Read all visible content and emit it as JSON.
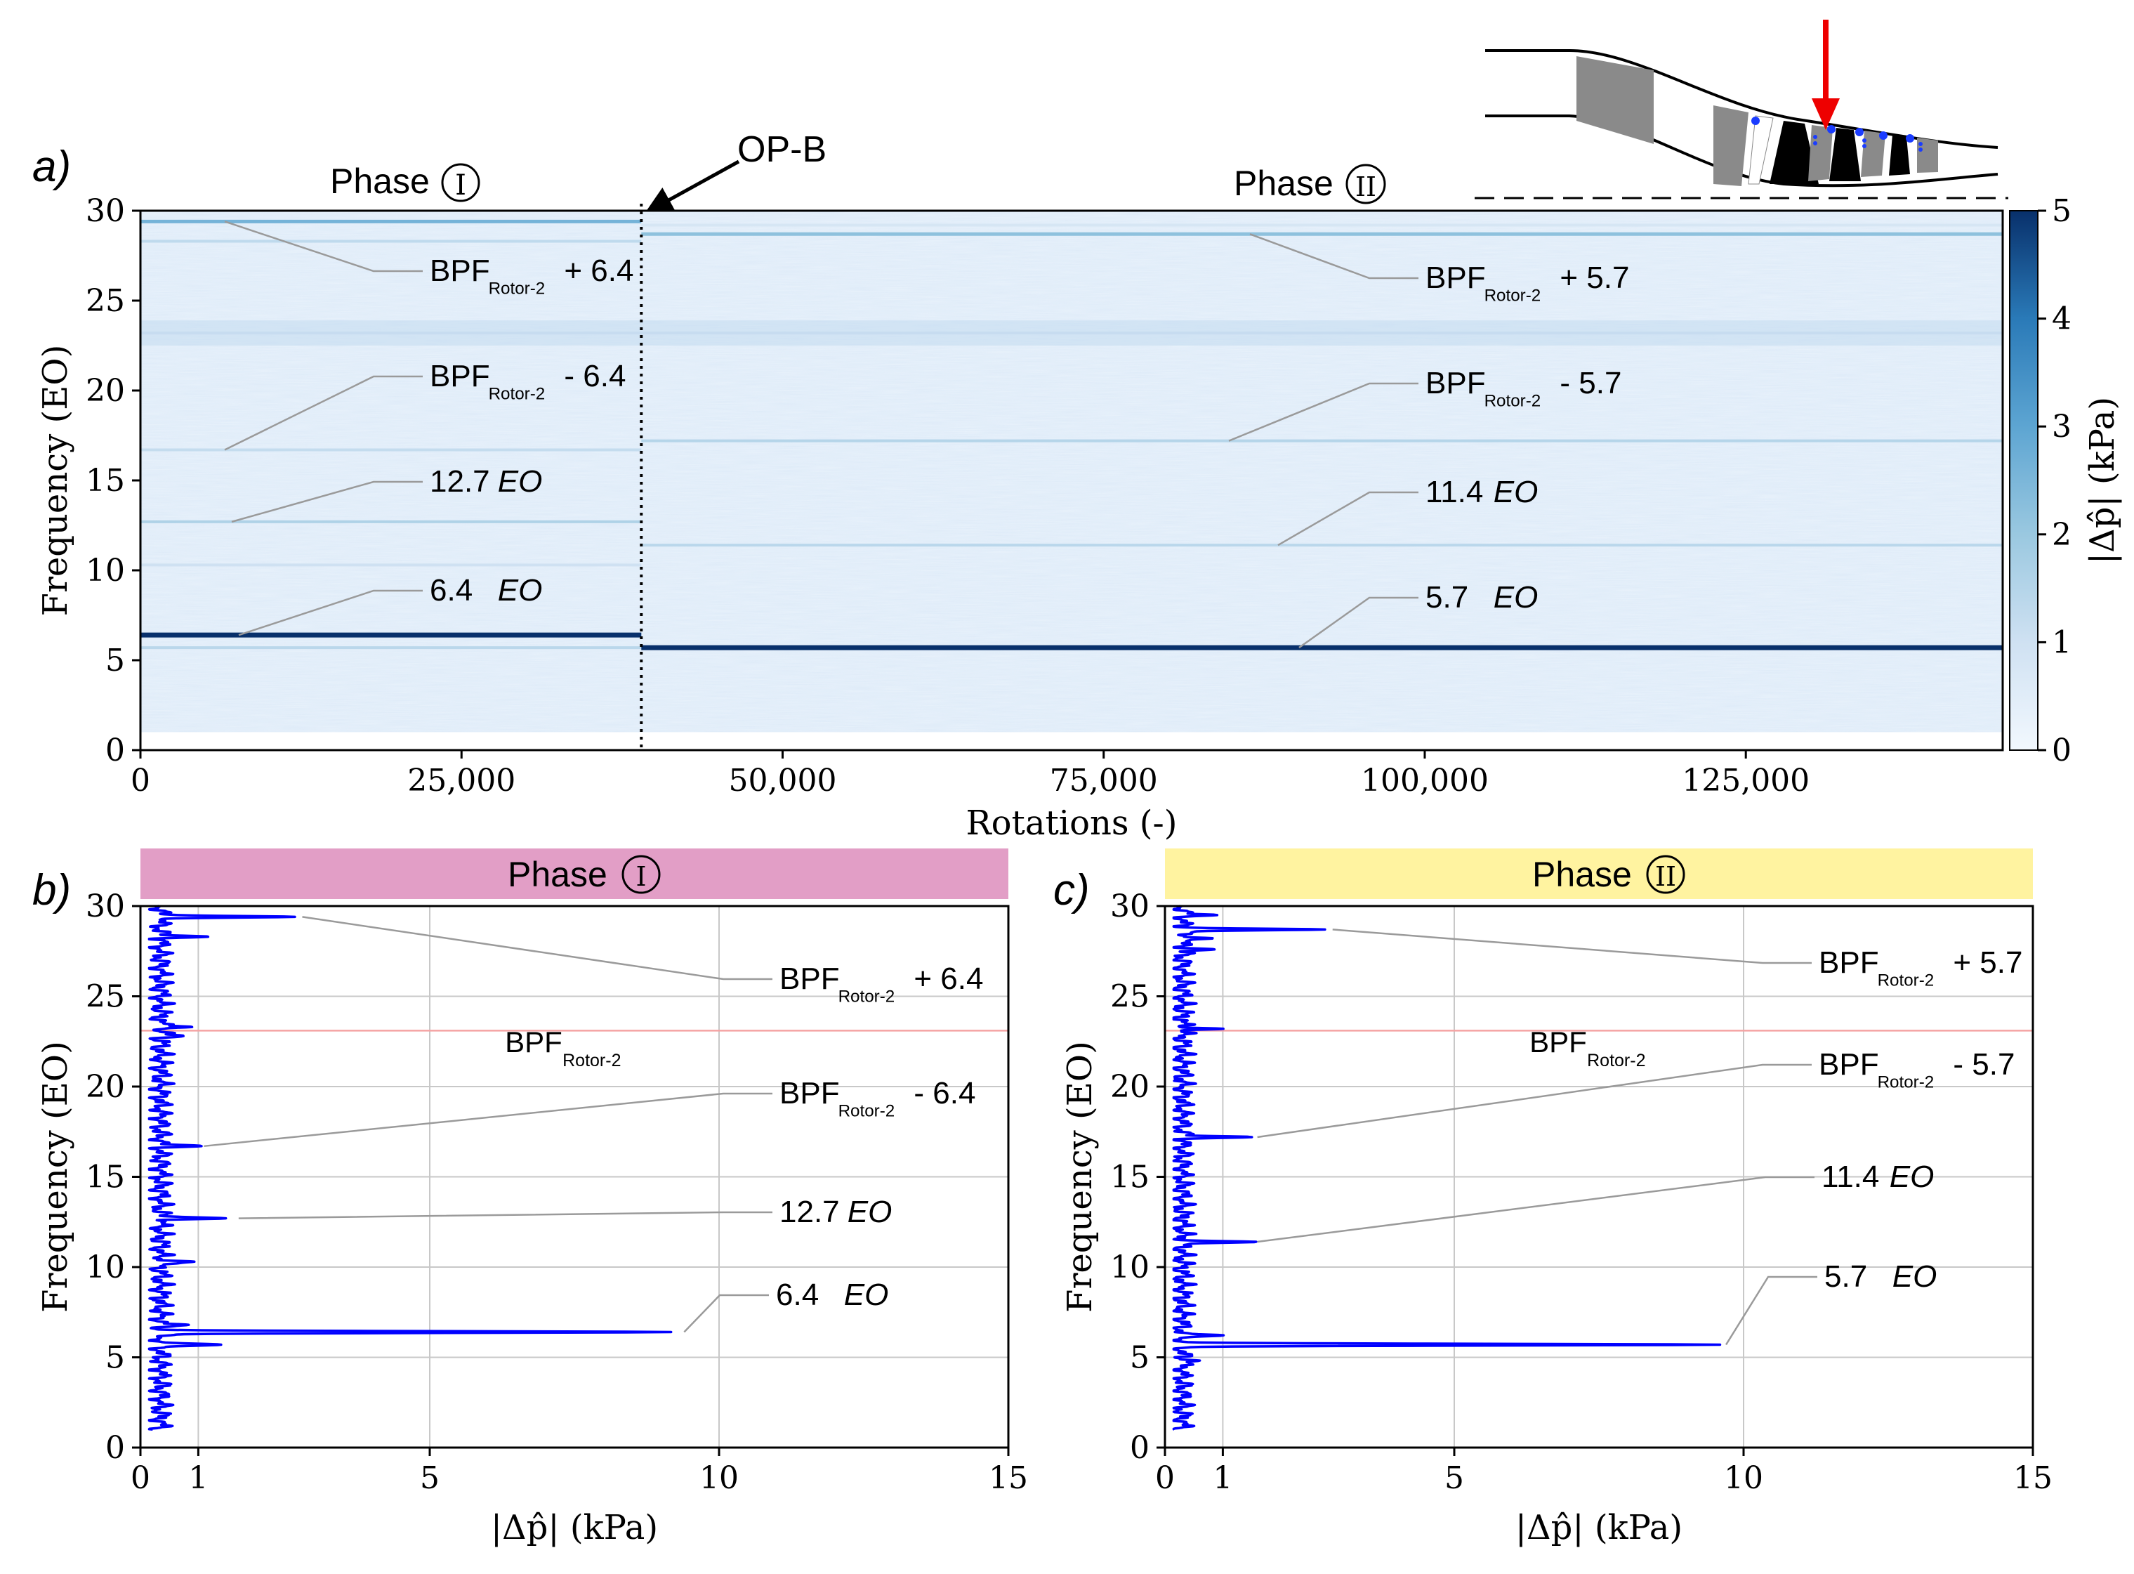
{
  "figure": {
    "labels": {
      "a": "a)",
      "b": "b)",
      "c": "c)"
    },
    "op_marker": "OP-B",
    "phase1": "Phase",
    "phase1_num": "I",
    "phase2": "Phase",
    "phase2_num": "II",
    "colorbar_label": "|Δp̂| (kPa)",
    "colorbar_ticks": [
      "0",
      "1",
      "2",
      "3",
      "4",
      "5"
    ],
    "rotor_sub": "Rotor-2"
  },
  "chart_data": [
    {
      "type": "heatmap",
      "id": "a",
      "xlabel": "Rotations (-)",
      "ylabel": "Frequency (EO)",
      "xlim": [
        0,
        145000
      ],
      "ylim": [
        0,
        30
      ],
      "xticks": [
        0,
        25000,
        50000,
        75000,
        100000,
        125000
      ],
      "xtick_labels": [
        "0",
        "25,000",
        "50,000",
        "75,000",
        "100,000",
        "125,000"
      ],
      "yticks": [
        0,
        5,
        10,
        15,
        20,
        25,
        30
      ],
      "ytick_labels": [
        "0",
        "5",
        "10",
        "15",
        "20",
        "25",
        "30"
      ],
      "color_range": [
        0,
        5
      ],
      "color_unit": "kPa",
      "op_change_rotation": 39000,
      "phase_bands": [
        {
          "name": "Phase I",
          "x_range": [
            0,
            39000
          ],
          "lines": [
            {
              "eo": 29.4,
              "amp": 2.6
            },
            {
              "eo": 28.3,
              "amp": 1.3
            },
            {
              "eo": 23.2,
              "amp": 1.0
            },
            {
              "eo": 16.7,
              "amp": 1.2
            },
            {
              "eo": 12.7,
              "amp": 1.6
            },
            {
              "eo": 10.3,
              "amp": 1.0
            },
            {
              "eo": 6.4,
              "amp": 5.0
            },
            {
              "eo": 5.7,
              "amp": 1.4
            }
          ]
        },
        {
          "name": "Phase II",
          "x_range": [
            39000,
            145000
          ],
          "lines": [
            {
              "eo": 28.7,
              "amp": 2.2
            },
            {
              "eo": 29.2,
              "amp": 0.8
            },
            {
              "eo": 23.2,
              "amp": 1.0
            },
            {
              "eo": 17.2,
              "amp": 1.5
            },
            {
              "eo": 11.4,
              "amp": 1.4
            },
            {
              "eo": 5.7,
              "amp": 5.0
            }
          ]
        }
      ],
      "annotations": [
        {
          "base": "BPF",
          "op": "+ 6.4",
          "eo": 29.4
        },
        {
          "base": "BPF",
          "op": "- 6.4",
          "eo": 16.7
        },
        {
          "text": "12.7",
          "unit": "EO",
          "eo": 12.7
        },
        {
          "text": "6.4",
          "unit": "EO",
          "eo": 6.4
        },
        {
          "base": "BPF",
          "op": "+ 5.7",
          "eo": 28.7
        },
        {
          "base": "BPF",
          "op": "- 5.7",
          "eo": 17.2
        },
        {
          "text": "11.4",
          "unit": "EO",
          "eo": 11.4
        },
        {
          "text": "5.7",
          "unit": "EO",
          "eo": 5.7
        }
      ]
    },
    {
      "type": "line",
      "id": "b",
      "title": "Phase",
      "title_num": "I",
      "title_color": "#e29ec6",
      "xlabel": "|Δp̂| (kPa)",
      "ylabel": "Frequency (EO)",
      "xlim": [
        0,
        15
      ],
      "ylim": [
        0,
        30
      ],
      "xticks": [
        0,
        1,
        5,
        10,
        15
      ],
      "yticks": [
        0,
        5,
        10,
        15,
        20,
        25,
        30
      ],
      "bpf_line_eo": 23.1,
      "bpf_label": "BPF",
      "baseline": {
        "eo_range": [
          1,
          30
        ],
        "amp": 0.35
      },
      "peaks": [
        {
          "eo": 29.4,
          "amp": 2.7
        },
        {
          "eo": 28.3,
          "amp": 1.2
        },
        {
          "eo": 23.3,
          "amp": 1.0
        },
        {
          "eo": 22.8,
          "amp": 0.8
        },
        {
          "eo": 16.7,
          "amp": 1.0
        },
        {
          "eo": 12.7,
          "amp": 1.6
        },
        {
          "eo": 10.3,
          "amp": 1.0
        },
        {
          "eo": 6.4,
          "amp": 9.3
        },
        {
          "eo": 5.7,
          "amp": 1.4
        },
        {
          "eo": 6.8,
          "amp": 0.7
        }
      ],
      "annotations": [
        {
          "base": "BPF",
          "op": "+ 6.4",
          "eo": 29.4,
          "amp": 2.7
        },
        {
          "base": "BPF",
          "op": "- 6.4",
          "eo": 16.7,
          "amp": 1.0
        },
        {
          "text": "12.7",
          "unit": "EO",
          "eo": 12.7,
          "amp": 1.6
        },
        {
          "text": "6.4",
          "unit": "EO",
          "eo": 6.4,
          "amp": 9.3
        }
      ]
    },
    {
      "type": "line",
      "id": "c",
      "title": "Phase",
      "title_num": "II",
      "title_color": "#fff3a0",
      "xlabel": "|Δp̂| (kPa)",
      "ylabel": "Frequency (EO)",
      "xlim": [
        0,
        15
      ],
      "ylim": [
        0,
        30
      ],
      "xticks": [
        0,
        1,
        5,
        10,
        15
      ],
      "yticks": [
        0,
        5,
        10,
        15,
        20,
        25,
        30
      ],
      "bpf_line_eo": 23.1,
      "bpf_label": "BPF",
      "baseline": {
        "eo_range": [
          1,
          30
        ],
        "amp": 0.3
      },
      "peaks": [
        {
          "eo": 28.7,
          "amp": 2.8
        },
        {
          "eo": 28.2,
          "amp": 1.0
        },
        {
          "eo": 29.5,
          "amp": 0.8
        },
        {
          "eo": 27.6,
          "amp": 0.9
        },
        {
          "eo": 23.2,
          "amp": 1.0
        },
        {
          "eo": 17.2,
          "amp": 1.5
        },
        {
          "eo": 11.4,
          "amp": 1.5
        },
        {
          "eo": 5.7,
          "amp": 9.6
        },
        {
          "eo": 6.2,
          "amp": 0.9
        },
        {
          "eo": 4.8,
          "amp": 0.7
        }
      ],
      "annotations": [
        {
          "base": "BPF",
          "op": "+ 5.7",
          "eo": 28.7,
          "amp": 2.8
        },
        {
          "base": "BPF",
          "op": "- 5.7",
          "eo": 17.2,
          "amp": 1.5
        },
        {
          "text": "11.4",
          "unit": "EO",
          "eo": 11.4,
          "amp": 1.5
        },
        {
          "text": "5.7",
          "unit": "EO",
          "eo": 5.7,
          "amp": 9.6
        }
      ]
    }
  ]
}
